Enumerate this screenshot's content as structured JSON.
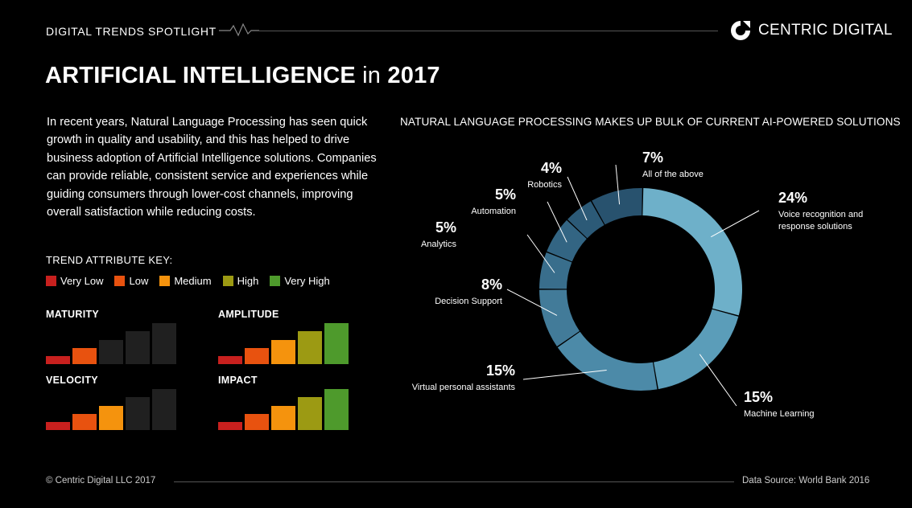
{
  "header": {
    "section": "DIGITAL TRENDS SPOTLIGHT",
    "brand": "CENTRIC DIGITAL"
  },
  "title": {
    "main": "ARTIFICIAL INTELLIGENCE",
    "in": "in",
    "year": "2017"
  },
  "intro": "In recent years, Natural Language Processing has seen quick growth in quality and usability, and this has helped to drive business adoption of Artificial Intelligence solutions. Companies can provide reliable, consistent service and experiences while guiding consumers through lower-cost channels, improving overall satisfaction while reducing costs.",
  "trend_key": {
    "title": "TREND ATTRIBUTE KEY:",
    "levels": [
      {
        "label": "Very Low",
        "color": "#c8201e"
      },
      {
        "label": "Low",
        "color": "#e8520f"
      },
      {
        "label": "Medium",
        "color": "#f5930d"
      },
      {
        "label": "High",
        "color": "#9c9a13"
      },
      {
        "label": "Very High",
        "color": "#4e9a2c"
      }
    ],
    "inactive_color": "#202020"
  },
  "attributes": [
    {
      "name": "MATURITY",
      "level": 2
    },
    {
      "name": "AMPLITUDE",
      "level": 5
    },
    {
      "name": "VELOCITY",
      "level": 3
    },
    {
      "name": "IMPACT",
      "level": 5
    }
  ],
  "chart_data": {
    "type": "pie",
    "title": "NATURAL LANGUAGE PROCESSING MAKES UP BULK OF CURRENT AI-POWERED SOLUTIONS",
    "donut": true,
    "slices": [
      {
        "label": "Voice recognition and response solutions",
        "value": 24,
        "display": "24%",
        "color": "#6eb0c9"
      },
      {
        "label": "Machine Learning",
        "value": 15,
        "display": "15%",
        "color": "#5b9db9"
      },
      {
        "label": "Virtual personal assistants",
        "value": 15,
        "display": "15%",
        "color": "#4c8aa8"
      },
      {
        "label": "Decision Support",
        "value": 8,
        "display": "8%",
        "color": "#427b99"
      },
      {
        "label": "Analytics",
        "value": 5,
        "display": "5%",
        "color": "#396e8c"
      },
      {
        "label": "Automation",
        "value": 5,
        "display": "5%",
        "color": "#336583"
      },
      {
        "label": "Robotics",
        "value": 4,
        "display": "4%",
        "color": "#2c5a77"
      },
      {
        "label": "All of the above",
        "value": 7,
        "display": "7%",
        "color": "#28526e"
      }
    ]
  },
  "footer": {
    "copyright": "© Centric Digital LLC 2017",
    "source": "Data Source: World Bank 2016"
  }
}
